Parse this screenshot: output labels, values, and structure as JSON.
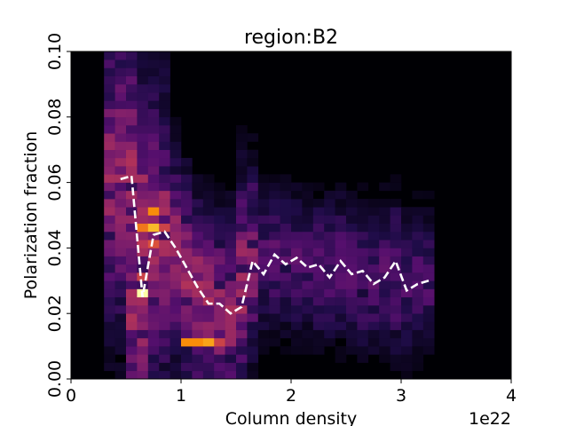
{
  "chart_data": {
    "type": "heatmap",
    "title": "region:B2",
    "xlabel": "Column density",
    "ylabel": "Polarization fraction",
    "x_offset_label": "1e22",
    "xlim": [
      0,
      4
    ],
    "ylim": [
      0,
      0.1
    ],
    "x_ticks": [
      0,
      1,
      2,
      3,
      4
    ],
    "x_tick_labels": [
      "0",
      "1",
      "2",
      "3",
      "4"
    ],
    "y_ticks": [
      0,
      0.02,
      0.04,
      0.06,
      0.08,
      0.1
    ],
    "y_tick_labels": [
      "0.00",
      "0.02",
      "0.04",
      "0.06",
      "0.08",
      "0.10"
    ],
    "grid": false,
    "colormap": "inferno",
    "bins": {
      "nx": 40,
      "ny": 40
    },
    "background_color": "#000004",
    "line_color": "#ffffff",
    "hot_cells": [
      {
        "x": 0.75,
        "y": 0.0505,
        "v": 0.75
      },
      {
        "x": 0.75,
        "y": 0.0455,
        "v": 0.85
      },
      {
        "x": 0.65,
        "y": 0.0455,
        "v": 0.7
      },
      {
        "x": 0.65,
        "y": 0.0255,
        "v": 1.0
      },
      {
        "x": 0.85,
        "y": 0.0455,
        "v": 0.55
      },
      {
        "x": 0.75,
        "y": 0.0405,
        "v": 0.6
      },
      {
        "x": 0.65,
        "y": 0.0405,
        "v": 0.5
      },
      {
        "x": 0.65,
        "y": 0.0305,
        "v": 0.55
      },
      {
        "x": 1.05,
        "y": 0.0105,
        "v": 0.75
      },
      {
        "x": 1.15,
        "y": 0.0105,
        "v": 0.75
      },
      {
        "x": 1.25,
        "y": 0.0105,
        "v": 0.8
      },
      {
        "x": 1.35,
        "y": 0.0105,
        "v": 0.55
      },
      {
        "x": 0.55,
        "y": 0.0605,
        "v": 0.45
      },
      {
        "x": 0.65,
        "y": 0.0605,
        "v": 0.45
      },
      {
        "x": 0.75,
        "y": 0.0355,
        "v": 0.45
      }
    ],
    "series": [
      {
        "style": "dashed",
        "x": [
          0.45,
          0.55,
          0.65,
          0.75,
          0.85,
          0.95,
          1.05,
          1.15,
          1.25,
          1.35,
          1.45,
          1.55,
          1.65,
          1.75,
          1.85,
          1.95,
          2.05,
          2.15,
          2.25,
          2.35,
          2.45,
          2.55,
          2.65,
          2.75,
          2.85,
          2.95,
          3.05,
          3.15,
          3.25
        ],
        "y": [
          0.061,
          0.062,
          0.025,
          0.044,
          0.045,
          0.04,
          0.034,
          0.028,
          0.023,
          0.023,
          0.02,
          0.022,
          0.036,
          0.032,
          0.038,
          0.035,
          0.037,
          0.034,
          0.035,
          0.031,
          0.036,
          0.032,
          0.033,
          0.029,
          0.031,
          0.036,
          0.027,
          0.029,
          0.03
        ]
      }
    ]
  }
}
